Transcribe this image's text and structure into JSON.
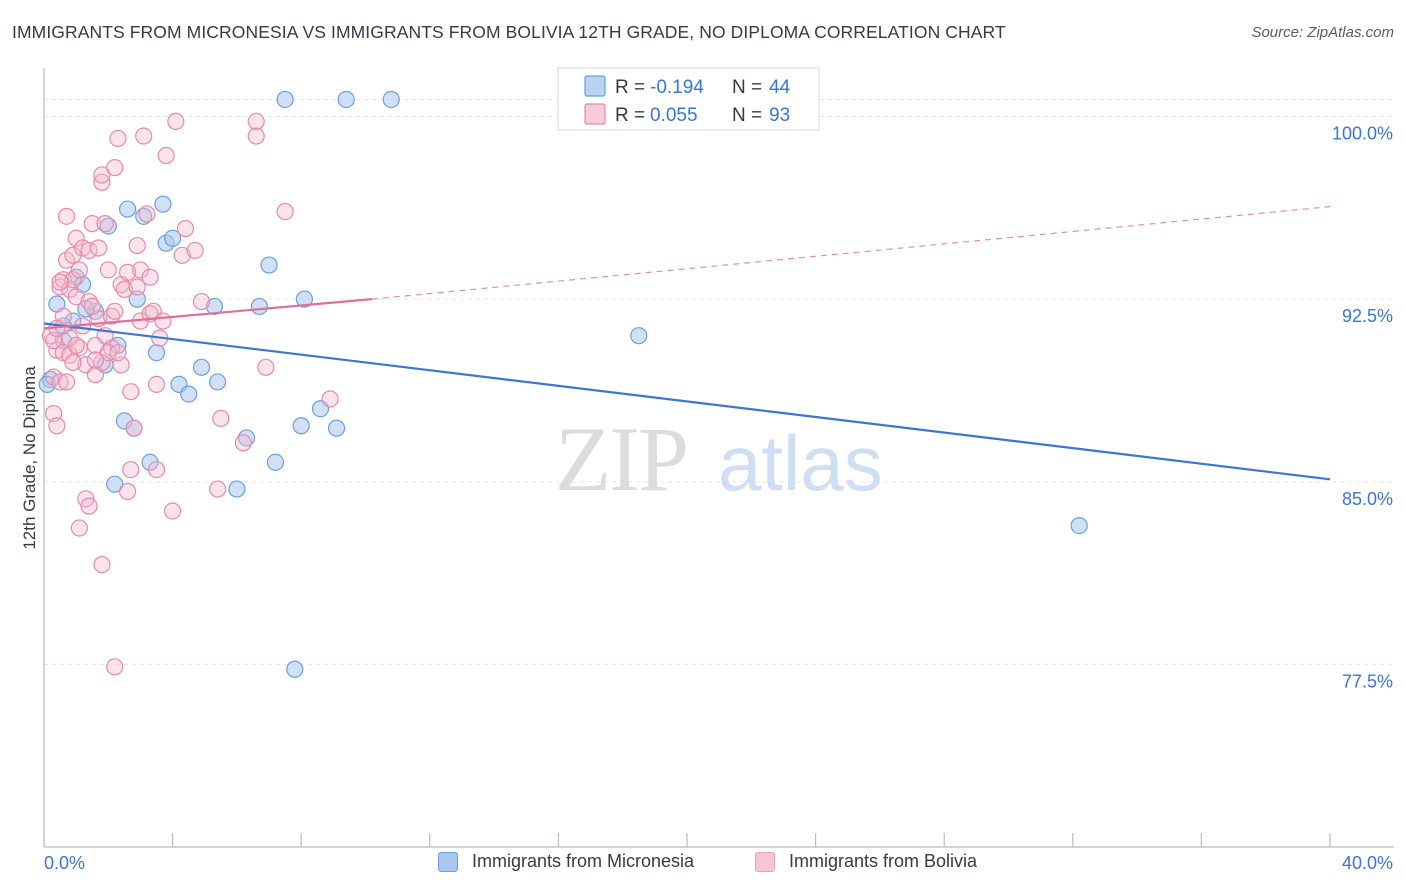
{
  "title": "IMMIGRANTS FROM MICRONESIA VS IMMIGRANTS FROM BOLIVIA 12TH GRADE, NO DIPLOMA CORRELATION CHART",
  "source": "Source: ZipAtlas.com",
  "watermark": {
    "zip": "ZIP",
    "atlas": "atlas"
  },
  "colors": {
    "blue_fill": "#a9c8f0",
    "blue_stroke": "#6b9fe0",
    "blue_line": "#3a76d2",
    "pink_fill": "#f5b8cc",
    "pink_stroke": "#e88aa8",
    "pink_line": "#e0709a",
    "tick_label": "#3a76d2",
    "grid": "#e3e6ea"
  },
  "stats_legend": {
    "rows": [
      {
        "series": "blue",
        "r_label": "R = ",
        "r_value": "-0.194",
        "n_label": "N = ",
        "n_value": "44"
      },
      {
        "series": "pink",
        "r_label": "R = ",
        "r_value": "0.055",
        "n_label": "N = ",
        "n_value": "93"
      }
    ]
  },
  "chart_data": {
    "type": "scatter",
    "xlabel": "",
    "ylabel": "12th Grade, No Diploma",
    "xlim": [
      0,
      40
    ],
    "ylim": [
      70,
      101.5
    ],
    "x_tick_labels": [
      {
        "value": 0,
        "label": "0.0%"
      },
      {
        "value": 40,
        "label": "40.0%"
      }
    ],
    "y_tick_labels": [
      {
        "value": 100,
        "label": "100.0%"
      },
      {
        "value": 92.5,
        "label": "92.5%"
      },
      {
        "value": 85,
        "label": "85.0%"
      },
      {
        "value": 77.5,
        "label": "77.5%"
      }
    ],
    "grid": true,
    "legend_position": "bottom",
    "series": [
      {
        "name": "Immigrants from Micronesia",
        "color": "blue",
        "trend": {
          "x": [
            0,
            40
          ],
          "y": [
            91.5,
            85.1
          ],
          "dashed_extension": false
        },
        "points": [
          [
            0.2,
            89.2
          ],
          [
            0.4,
            92.3
          ],
          [
            0.6,
            90.8
          ],
          [
            0.9,
            91.6
          ],
          [
            1.0,
            93.4
          ],
          [
            1.2,
            93.1
          ],
          [
            1.6,
            92.0
          ],
          [
            1.9,
            89.8
          ],
          [
            2.0,
            95.5
          ],
          [
            2.2,
            84.9
          ],
          [
            2.3,
            90.6
          ],
          [
            2.5,
            87.5
          ],
          [
            2.6,
            96.2
          ],
          [
            2.8,
            87.2
          ],
          [
            2.9,
            92.5
          ],
          [
            3.1,
            95.9
          ],
          [
            3.3,
            85.8
          ],
          [
            3.5,
            90.3
          ],
          [
            3.7,
            96.4
          ],
          [
            3.8,
            94.8
          ],
          [
            4.0,
            95.0
          ],
          [
            4.2,
            89.0
          ],
          [
            4.5,
            88.6
          ],
          [
            4.9,
            89.7
          ],
          [
            5.4,
            89.1
          ],
          [
            5.3,
            92.2
          ],
          [
            6.0,
            84.7
          ],
          [
            6.3,
            86.8
          ],
          [
            6.7,
            92.2
          ],
          [
            7.0,
            93.9
          ],
          [
            7.2,
            85.8
          ],
          [
            7.5,
            100.7
          ],
          [
            7.8,
            77.3
          ],
          [
            8.0,
            87.3
          ],
          [
            8.1,
            92.5
          ],
          [
            8.6,
            88.0
          ],
          [
            9.1,
            87.2
          ],
          [
            9.4,
            100.7
          ],
          [
            10.8,
            100.7
          ],
          [
            18.5,
            91.0
          ],
          [
            32.2,
            83.2
          ],
          [
            0.1,
            89.0
          ],
          [
            0.6,
            91.4
          ],
          [
            1.3,
            92.1
          ]
        ]
      },
      {
        "name": "Immigrants from Bolivia",
        "color": "pink",
        "trend": {
          "x": [
            0,
            10.2
          ],
          "y": [
            91.3,
            92.5
          ],
          "dashed_extension": true,
          "extension_to": [
            40,
            96.3
          ]
        },
        "points": [
          [
            0.2,
            91.0
          ],
          [
            0.3,
            89.3
          ],
          [
            0.3,
            87.8
          ],
          [
            0.4,
            87.3
          ],
          [
            0.4,
            90.4
          ],
          [
            0.5,
            89.1
          ],
          [
            0.5,
            93.0
          ],
          [
            0.6,
            91.8
          ],
          [
            0.6,
            93.3
          ],
          [
            0.6,
            90.3
          ],
          [
            0.7,
            89.1
          ],
          [
            0.7,
            94.1
          ],
          [
            0.7,
            95.9
          ],
          [
            0.8,
            92.9
          ],
          [
            0.8,
            90.9
          ],
          [
            0.9,
            93.3
          ],
          [
            0.9,
            94.3
          ],
          [
            1.0,
            95.0
          ],
          [
            1.0,
            92.6
          ],
          [
            1.1,
            90.5
          ],
          [
            1.1,
            93.7
          ],
          [
            1.2,
            94.6
          ],
          [
            1.2,
            91.4
          ],
          [
            1.3,
            89.8
          ],
          [
            1.3,
            84.3
          ],
          [
            1.4,
            94.5
          ],
          [
            1.4,
            92.4
          ],
          [
            1.5,
            95.6
          ],
          [
            1.6,
            90.6
          ],
          [
            1.6,
            89.4
          ],
          [
            1.7,
            91.7
          ],
          [
            1.8,
            89.9
          ],
          [
            1.8,
            97.3
          ],
          [
            1.8,
            97.6
          ],
          [
            1.9,
            95.6
          ],
          [
            2.0,
            93.7
          ],
          [
            2.1,
            90.5
          ],
          [
            2.1,
            91.8
          ],
          [
            2.2,
            97.9
          ],
          [
            2.3,
            99.1
          ],
          [
            2.4,
            89.8
          ],
          [
            2.4,
            93.1
          ],
          [
            2.5,
            92.9
          ],
          [
            2.6,
            84.6
          ],
          [
            2.7,
            85.5
          ],
          [
            2.8,
            87.2
          ],
          [
            2.9,
            94.7
          ],
          [
            2.9,
            93.0
          ],
          [
            3.0,
            91.6
          ],
          [
            3.0,
            93.7
          ],
          [
            3.1,
            99.2
          ],
          [
            3.2,
            96.0
          ],
          [
            3.3,
            91.9
          ],
          [
            3.3,
            93.4
          ],
          [
            3.4,
            92.0
          ],
          [
            3.5,
            89.0
          ],
          [
            3.6,
            90.9
          ],
          [
            3.7,
            91.6
          ],
          [
            3.8,
            98.4
          ],
          [
            4.0,
            83.8
          ],
          [
            4.1,
            99.8
          ],
          [
            4.3,
            94.3
          ],
          [
            4.4,
            95.4
          ],
          [
            4.7,
            94.5
          ],
          [
            4.9,
            92.4
          ],
          [
            5.4,
            84.7
          ],
          [
            5.5,
            87.6
          ],
          [
            6.2,
            86.6
          ],
          [
            6.6,
            99.2
          ],
          [
            6.6,
            99.8
          ],
          [
            6.9,
            89.7
          ],
          [
            7.5,
            96.1
          ],
          [
            8.9,
            88.4
          ],
          [
            1.1,
            83.1
          ],
          [
            1.8,
            81.6
          ],
          [
            2.2,
            77.4
          ],
          [
            0.5,
            93.2
          ],
          [
            0.8,
            90.2
          ],
          [
            1.0,
            90.6
          ],
          [
            1.5,
            92.2
          ],
          [
            1.7,
            94.6
          ],
          [
            2.0,
            90.3
          ],
          [
            2.2,
            92.0
          ],
          [
            2.6,
            93.6
          ],
          [
            0.3,
            90.8
          ],
          [
            0.9,
            89.9
          ],
          [
            1.4,
            84.0
          ],
          [
            1.9,
            91.0
          ],
          [
            2.3,
            90.3
          ],
          [
            2.7,
            88.7
          ],
          [
            3.5,
            85.5
          ],
          [
            1.6,
            90.0
          ],
          [
            0.4,
            91.3
          ]
        ]
      }
    ]
  },
  "legend_bottom": [
    {
      "series": "blue",
      "label": "Immigrants from Micronesia"
    },
    {
      "series": "pink",
      "label": "Immigrants from Bolivia"
    }
  ]
}
